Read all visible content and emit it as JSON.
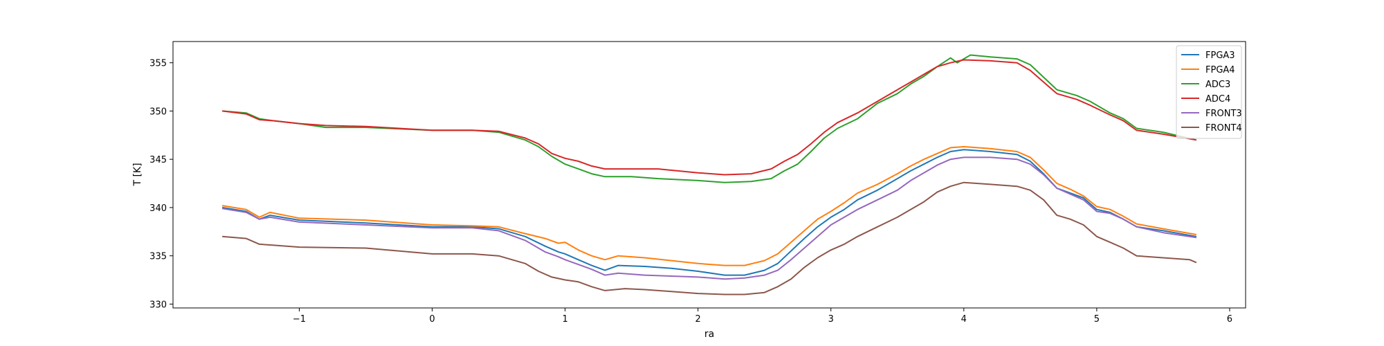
{
  "chart_data": {
    "type": "line",
    "title": "",
    "xlabel": "ra",
    "ylabel": "T [K]",
    "xlim": [
      -1.95,
      6.12
    ],
    "ylim": [
      329.6,
      357.2
    ],
    "xticks": [
      -1,
      0,
      1,
      2,
      3,
      4,
      5,
      6
    ],
    "yticks": [
      330,
      335,
      340,
      345,
      350,
      355
    ],
    "grid": false,
    "legend_position": "top-right",
    "series": [
      {
        "name": "FPGA3",
        "color": "#1f77b4",
        "points": [
          [
            -1.58,
            340.0
          ],
          [
            -1.4,
            339.6
          ],
          [
            -1.3,
            338.8
          ],
          [
            -1.22,
            339.2
          ],
          [
            -1.0,
            338.7
          ],
          [
            -0.5,
            338.4
          ],
          [
            0.0,
            338.0
          ],
          [
            0.3,
            338.0
          ],
          [
            0.5,
            337.8
          ],
          [
            0.7,
            337.0
          ],
          [
            0.85,
            336.0
          ],
          [
            0.95,
            335.4
          ],
          [
            1.0,
            335.2
          ],
          [
            1.1,
            334.6
          ],
          [
            1.2,
            334.0
          ],
          [
            1.3,
            333.5
          ],
          [
            1.4,
            334.0
          ],
          [
            1.6,
            333.9
          ],
          [
            1.8,
            333.7
          ],
          [
            2.0,
            333.4
          ],
          [
            2.2,
            333.0
          ],
          [
            2.35,
            333.0
          ],
          [
            2.5,
            333.5
          ],
          [
            2.6,
            334.2
          ],
          [
            2.7,
            335.5
          ],
          [
            2.8,
            336.8
          ],
          [
            2.9,
            338.0
          ],
          [
            3.0,
            339.0
          ],
          [
            3.1,
            339.8
          ],
          [
            3.2,
            340.8
          ],
          [
            3.35,
            341.8
          ],
          [
            3.5,
            343.0
          ],
          [
            3.6,
            343.8
          ],
          [
            3.7,
            344.5
          ],
          [
            3.8,
            345.2
          ],
          [
            3.9,
            345.8
          ],
          [
            4.0,
            346.0
          ],
          [
            4.2,
            345.8
          ],
          [
            4.4,
            345.5
          ],
          [
            4.5,
            344.8
          ],
          [
            4.6,
            343.5
          ],
          [
            4.7,
            342.0
          ],
          [
            4.8,
            341.5
          ],
          [
            4.9,
            341.0
          ],
          [
            5.0,
            339.8
          ],
          [
            5.1,
            339.5
          ],
          [
            5.2,
            338.8
          ],
          [
            5.3,
            338.0
          ],
          [
            5.5,
            337.6
          ],
          [
            5.75,
            337.0
          ]
        ]
      },
      {
        "name": "FPGA4",
        "color": "#ff7f0e",
        "points": [
          [
            -1.58,
            340.2
          ],
          [
            -1.4,
            339.8
          ],
          [
            -1.3,
            339.0
          ],
          [
            -1.22,
            339.5
          ],
          [
            -1.0,
            338.9
          ],
          [
            -0.5,
            338.7
          ],
          [
            0.0,
            338.2
          ],
          [
            0.3,
            338.1
          ],
          [
            0.5,
            338.0
          ],
          [
            0.7,
            337.3
          ],
          [
            0.85,
            336.8
          ],
          [
            0.95,
            336.3
          ],
          [
            1.0,
            336.4
          ],
          [
            1.1,
            335.6
          ],
          [
            1.2,
            335.0
          ],
          [
            1.3,
            334.6
          ],
          [
            1.4,
            335.0
          ],
          [
            1.6,
            334.8
          ],
          [
            1.8,
            334.5
          ],
          [
            2.0,
            334.2
          ],
          [
            2.2,
            334.0
          ],
          [
            2.35,
            334.0
          ],
          [
            2.5,
            334.5
          ],
          [
            2.6,
            335.2
          ],
          [
            2.7,
            336.4
          ],
          [
            2.8,
            337.6
          ],
          [
            2.9,
            338.8
          ],
          [
            3.0,
            339.6
          ],
          [
            3.1,
            340.5
          ],
          [
            3.2,
            341.5
          ],
          [
            3.35,
            342.4
          ],
          [
            3.5,
            343.5
          ],
          [
            3.6,
            344.3
          ],
          [
            3.7,
            345.0
          ],
          [
            3.8,
            345.6
          ],
          [
            3.9,
            346.2
          ],
          [
            4.0,
            346.3
          ],
          [
            4.2,
            346.1
          ],
          [
            4.4,
            345.8
          ],
          [
            4.5,
            345.2
          ],
          [
            4.6,
            343.9
          ],
          [
            4.7,
            342.5
          ],
          [
            4.8,
            341.9
          ],
          [
            4.9,
            341.2
          ],
          [
            5.0,
            340.1
          ],
          [
            5.1,
            339.8
          ],
          [
            5.2,
            339.1
          ],
          [
            5.3,
            338.3
          ],
          [
            5.5,
            337.8
          ],
          [
            5.75,
            337.2
          ]
        ]
      },
      {
        "name": "ADC3",
        "color": "#2ca02c",
        "points": [
          [
            -1.58,
            350.0
          ],
          [
            -1.4,
            349.8
          ],
          [
            -1.3,
            349.2
          ],
          [
            -1.2,
            349.0
          ],
          [
            -1.0,
            348.7
          ],
          [
            -0.8,
            348.3
          ],
          [
            -0.5,
            348.3
          ],
          [
            0.0,
            348.0
          ],
          [
            0.3,
            348.0
          ],
          [
            0.5,
            347.8
          ],
          [
            0.7,
            347.0
          ],
          [
            0.8,
            346.3
          ],
          [
            0.9,
            345.3
          ],
          [
            1.0,
            344.5
          ],
          [
            1.1,
            344.0
          ],
          [
            1.2,
            343.5
          ],
          [
            1.3,
            343.2
          ],
          [
            1.5,
            343.2
          ],
          [
            1.7,
            343.0
          ],
          [
            2.0,
            342.8
          ],
          [
            2.2,
            342.6
          ],
          [
            2.4,
            342.7
          ],
          [
            2.55,
            343.0
          ],
          [
            2.65,
            343.8
          ],
          [
            2.75,
            344.5
          ],
          [
            2.85,
            345.8
          ],
          [
            2.95,
            347.2
          ],
          [
            3.05,
            348.2
          ],
          [
            3.2,
            349.2
          ],
          [
            3.35,
            350.8
          ],
          [
            3.5,
            351.8
          ],
          [
            3.6,
            352.8
          ],
          [
            3.7,
            353.6
          ],
          [
            3.8,
            354.6
          ],
          [
            3.9,
            355.5
          ],
          [
            3.95,
            355.0
          ],
          [
            4.05,
            355.8
          ],
          [
            4.2,
            355.6
          ],
          [
            4.4,
            355.4
          ],
          [
            4.5,
            354.8
          ],
          [
            4.6,
            353.5
          ],
          [
            4.7,
            352.2
          ],
          [
            4.85,
            351.6
          ],
          [
            4.95,
            351.0
          ],
          [
            5.1,
            349.8
          ],
          [
            5.2,
            349.2
          ],
          [
            5.3,
            348.2
          ],
          [
            5.5,
            347.8
          ],
          [
            5.75,
            347.0
          ]
        ]
      },
      {
        "name": "ADC4",
        "color": "#d62728",
        "points": [
          [
            -1.58,
            350.0
          ],
          [
            -1.4,
            349.7
          ],
          [
            -1.3,
            349.1
          ],
          [
            -1.2,
            349.0
          ],
          [
            -1.0,
            348.7
          ],
          [
            -0.8,
            348.5
          ],
          [
            -0.5,
            348.4
          ],
          [
            0.0,
            348.0
          ],
          [
            0.3,
            348.0
          ],
          [
            0.5,
            347.9
          ],
          [
            0.7,
            347.2
          ],
          [
            0.8,
            346.6
          ],
          [
            0.9,
            345.6
          ],
          [
            1.0,
            345.1
          ],
          [
            1.1,
            344.8
          ],
          [
            1.2,
            344.3
          ],
          [
            1.3,
            344.0
          ],
          [
            1.5,
            344.0
          ],
          [
            1.7,
            344.0
          ],
          [
            2.0,
            343.6
          ],
          [
            2.2,
            343.4
          ],
          [
            2.4,
            343.5
          ],
          [
            2.55,
            344.0
          ],
          [
            2.65,
            344.8
          ],
          [
            2.75,
            345.5
          ],
          [
            2.85,
            346.6
          ],
          [
            2.95,
            347.8
          ],
          [
            3.05,
            348.8
          ],
          [
            3.2,
            349.8
          ],
          [
            3.35,
            351.0
          ],
          [
            3.5,
            352.2
          ],
          [
            3.6,
            353.0
          ],
          [
            3.7,
            353.8
          ],
          [
            3.8,
            354.6
          ],
          [
            3.9,
            355.0
          ],
          [
            4.0,
            355.3
          ],
          [
            4.2,
            355.2
          ],
          [
            4.4,
            355.0
          ],
          [
            4.5,
            354.2
          ],
          [
            4.6,
            353.0
          ],
          [
            4.7,
            351.8
          ],
          [
            4.85,
            351.2
          ],
          [
            4.95,
            350.6
          ],
          [
            5.1,
            349.6
          ],
          [
            5.2,
            349.0
          ],
          [
            5.3,
            348.0
          ],
          [
            5.5,
            347.6
          ],
          [
            5.75,
            347.0
          ]
        ]
      },
      {
        "name": "FRONT3",
        "color": "#9467bd",
        "points": [
          [
            -1.58,
            339.9
          ],
          [
            -1.4,
            339.5
          ],
          [
            -1.3,
            338.8
          ],
          [
            -1.22,
            339.0
          ],
          [
            -1.0,
            338.5
          ],
          [
            -0.5,
            338.2
          ],
          [
            0.0,
            337.9
          ],
          [
            0.3,
            337.9
          ],
          [
            0.5,
            337.6
          ],
          [
            0.7,
            336.6
          ],
          [
            0.85,
            335.4
          ],
          [
            0.95,
            334.9
          ],
          [
            1.0,
            334.6
          ],
          [
            1.1,
            334.1
          ],
          [
            1.2,
            333.6
          ],
          [
            1.3,
            333.0
          ],
          [
            1.4,
            333.2
          ],
          [
            1.6,
            333.0
          ],
          [
            1.8,
            332.9
          ],
          [
            2.0,
            332.8
          ],
          [
            2.2,
            332.6
          ],
          [
            2.35,
            332.7
          ],
          [
            2.5,
            333.0
          ],
          [
            2.6,
            333.5
          ],
          [
            2.7,
            334.6
          ],
          [
            2.8,
            335.8
          ],
          [
            2.9,
            337.0
          ],
          [
            3.0,
            338.2
          ],
          [
            3.1,
            339.0
          ],
          [
            3.2,
            339.8
          ],
          [
            3.35,
            340.8
          ],
          [
            3.5,
            341.8
          ],
          [
            3.6,
            342.8
          ],
          [
            3.7,
            343.6
          ],
          [
            3.8,
            344.4
          ],
          [
            3.9,
            345.0
          ],
          [
            4.0,
            345.2
          ],
          [
            4.2,
            345.2
          ],
          [
            4.4,
            345.0
          ],
          [
            4.5,
            344.5
          ],
          [
            4.6,
            343.4
          ],
          [
            4.7,
            342.0
          ],
          [
            4.8,
            341.4
          ],
          [
            4.9,
            340.8
          ],
          [
            5.0,
            339.6
          ],
          [
            5.1,
            339.4
          ],
          [
            5.2,
            338.8
          ],
          [
            5.3,
            338.0
          ],
          [
            5.5,
            337.4
          ],
          [
            5.75,
            336.9
          ]
        ]
      },
      {
        "name": "FRONT4",
        "color": "#8c564b",
        "points": [
          [
            -1.58,
            337.0
          ],
          [
            -1.4,
            336.8
          ],
          [
            -1.3,
            336.2
          ],
          [
            -1.2,
            336.1
          ],
          [
            -1.0,
            335.9
          ],
          [
            -0.5,
            335.8
          ],
          [
            0.0,
            335.2
          ],
          [
            0.3,
            335.2
          ],
          [
            0.5,
            335.0
          ],
          [
            0.7,
            334.2
          ],
          [
            0.8,
            333.4
          ],
          [
            0.9,
            332.8
          ],
          [
            1.0,
            332.5
          ],
          [
            1.1,
            332.3
          ],
          [
            1.2,
            331.8
          ],
          [
            1.3,
            331.4
          ],
          [
            1.45,
            331.6
          ],
          [
            1.6,
            331.5
          ],
          [
            1.8,
            331.3
          ],
          [
            2.0,
            331.1
          ],
          [
            2.2,
            331.0
          ],
          [
            2.35,
            331.0
          ],
          [
            2.5,
            331.2
          ],
          [
            2.6,
            331.8
          ],
          [
            2.7,
            332.6
          ],
          [
            2.8,
            333.8
          ],
          [
            2.9,
            334.8
          ],
          [
            3.0,
            335.6
          ],
          [
            3.1,
            336.2
          ],
          [
            3.2,
            337.0
          ],
          [
            3.35,
            338.0
          ],
          [
            3.5,
            339.0
          ],
          [
            3.6,
            339.8
          ],
          [
            3.7,
            340.6
          ],
          [
            3.8,
            341.6
          ],
          [
            3.9,
            342.2
          ],
          [
            4.0,
            342.6
          ],
          [
            4.2,
            342.4
          ],
          [
            4.4,
            342.2
          ],
          [
            4.5,
            341.8
          ],
          [
            4.6,
            340.8
          ],
          [
            4.7,
            339.2
          ],
          [
            4.8,
            338.8
          ],
          [
            4.9,
            338.2
          ],
          [
            5.0,
            337.0
          ],
          [
            5.1,
            336.4
          ],
          [
            5.2,
            335.8
          ],
          [
            5.3,
            335.0
          ],
          [
            5.5,
            334.8
          ],
          [
            5.7,
            334.6
          ],
          [
            5.75,
            334.3
          ]
        ]
      }
    ]
  }
}
